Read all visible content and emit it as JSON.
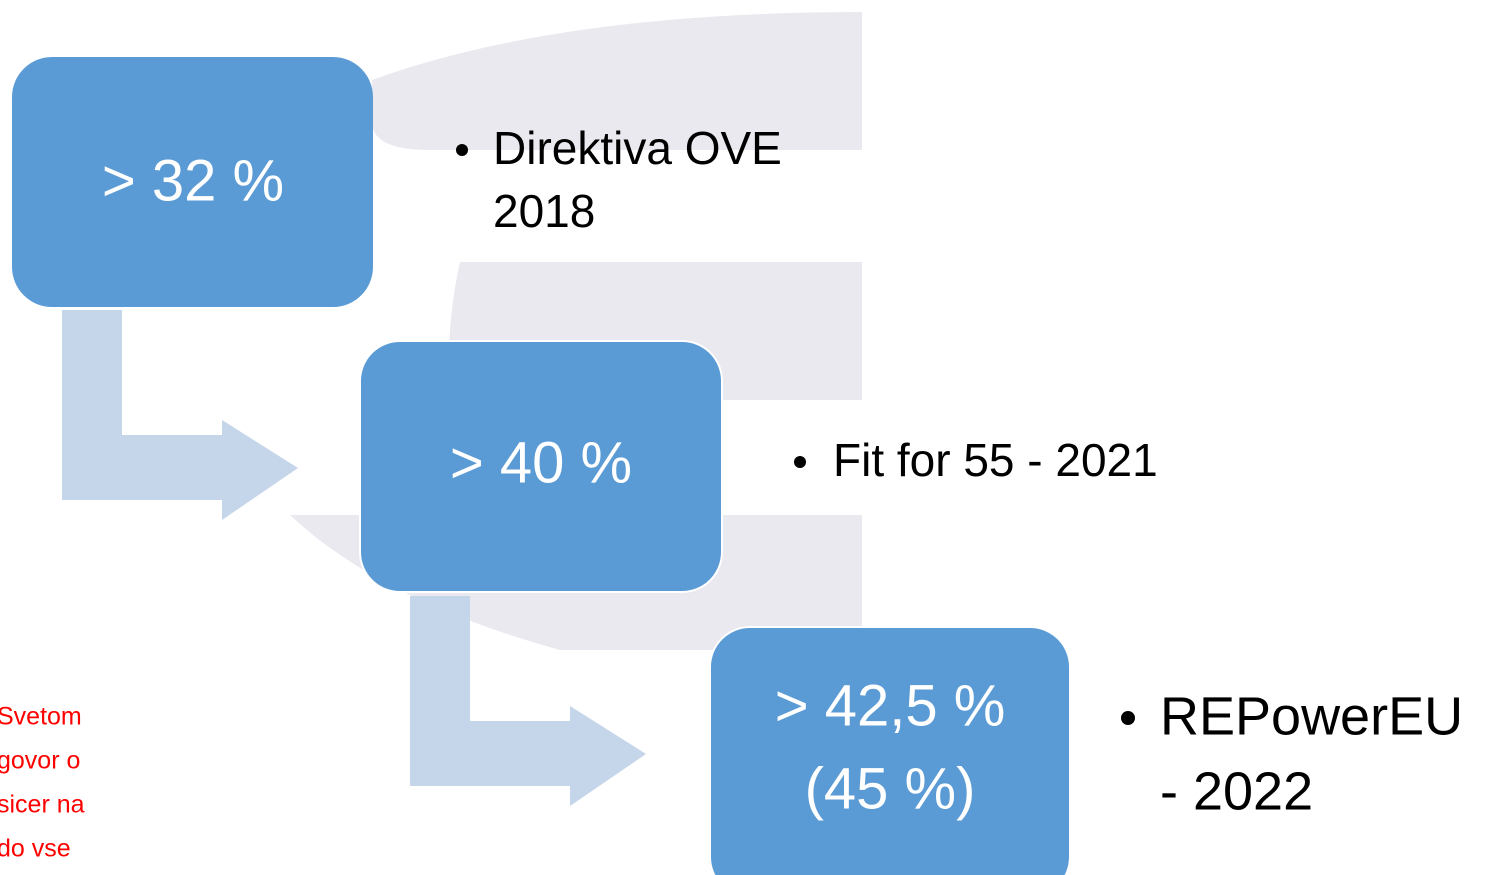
{
  "nodes": [
    {
      "label": [
        "> 32 %"
      ],
      "bullet": [
        "Direktiva OVE",
        "2018"
      ]
    },
    {
      "label": [
        "> 40 %"
      ],
      "bullet": [
        "Fit for 55 - 2021"
      ]
    },
    {
      "label": [
        "> 42,5 %",
        "(45 %)"
      ],
      "bullet": [
        "REPowerEU",
        "- 2022"
      ]
    }
  ],
  "note": [
    "Svetom",
    "govor o",
    "sicer na",
    "do vse"
  ]
}
